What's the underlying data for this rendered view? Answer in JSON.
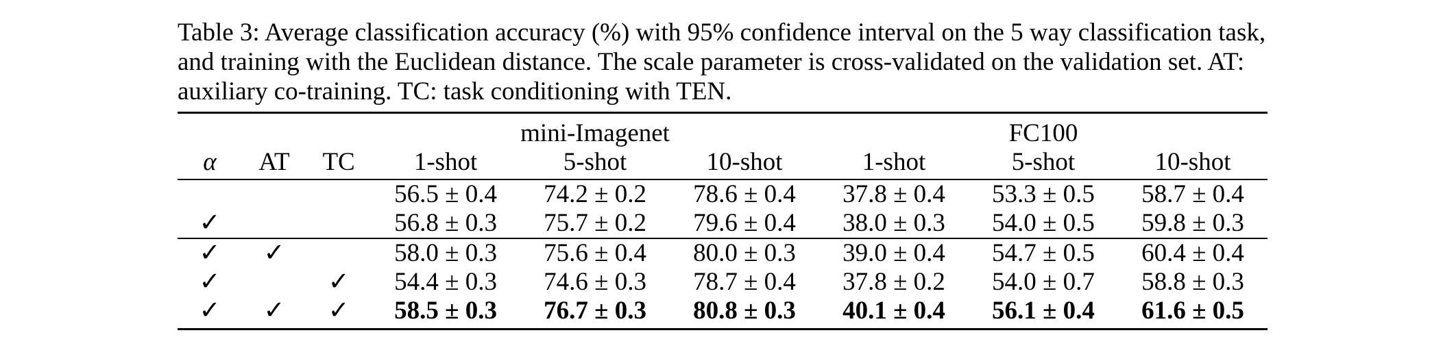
{
  "caption": "Table 3: Average classification accuracy (%) with 95% confidence interval on the 5 way classification task, and training with the Euclidean distance. The scale parameter is cross-validated on the validation set. AT: auxiliary co-training. TC: task conditioning with TEN.",
  "table": {
    "group_headers": [
      "mini-Imagenet",
      "FC100"
    ],
    "flag_headers": [
      "α",
      "AT",
      "TC"
    ],
    "shot_headers": [
      "1-shot",
      "5-shot",
      "10-shot",
      "1-shot",
      "5-shot",
      "10-shot"
    ],
    "check_symbol": "✓",
    "rows": [
      {
        "alpha": "",
        "at": "",
        "tc": "",
        "values": [
          "56.5 ± 0.4",
          "74.2 ± 0.2",
          "78.6 ± 0.4",
          "37.8 ± 0.4",
          "53.3 ± 0.5",
          "58.7 ± 0.4"
        ],
        "bold": false
      },
      {
        "alpha": "✓",
        "at": "",
        "tc": "",
        "values": [
          "56.8 ± 0.3",
          "75.7 ± 0.2",
          "79.6 ± 0.4",
          "38.0 ± 0.3",
          "54.0 ± 0.5",
          "59.8 ± 0.3"
        ],
        "bold": false
      },
      {
        "alpha": "✓",
        "at": "✓",
        "tc": "",
        "values": [
          "58.0 ± 0.3",
          "75.6 ± 0.4",
          "80.0 ± 0.3",
          "39.0 ± 0.4",
          "54.7 ± 0.5",
          "60.4 ± 0.4"
        ],
        "bold": false
      },
      {
        "alpha": "✓",
        "at": "",
        "tc": "✓",
        "values": [
          "54.4 ± 0.3",
          "74.6 ± 0.3",
          "78.7 ± 0.4",
          "37.8 ± 0.2",
          "54.0 ± 0.7",
          "58.8 ± 0.3"
        ],
        "bold": false
      },
      {
        "alpha": "✓",
        "at": "✓",
        "tc": "✓",
        "values": [
          "58.5 ± 0.3",
          "76.7 ± 0.3",
          "80.8 ± 0.3",
          "40.1 ± 0.4",
          "56.1 ± 0.4",
          "61.6 ± 0.5"
        ],
        "bold": true
      }
    ]
  }
}
